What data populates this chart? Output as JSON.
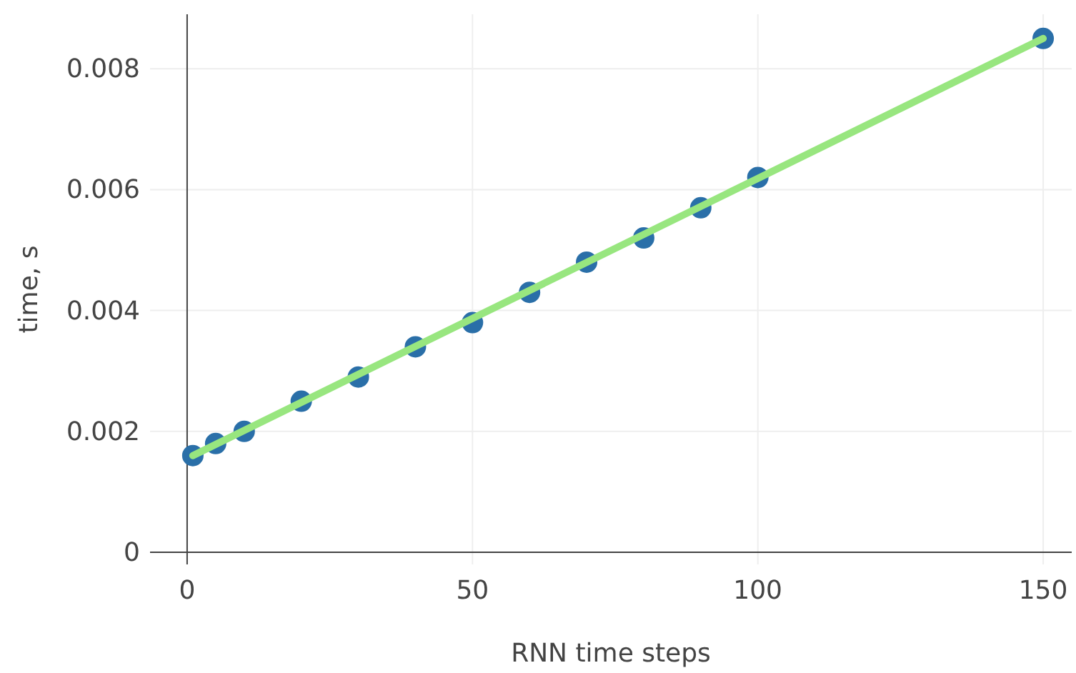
{
  "chart_data": {
    "type": "scatter",
    "xlabel": "RNN time steps",
    "ylabel": "time, s",
    "x": [
      1,
      5,
      10,
      20,
      30,
      40,
      50,
      60,
      70,
      80,
      90,
      100,
      150
    ],
    "series": [
      {
        "color": "#2a6fa8",
        "values": [
          0.0016,
          0.0018,
          0.002,
          0.0025,
          0.0029,
          0.0034,
          0.0038,
          0.0043,
          0.0048,
          0.0052,
          0.0057,
          0.0062,
          0.0085
        ],
        "marker": "circle"
      },
      {
        "type": "line",
        "color": "#98e67f",
        "x": [
          1,
          150
        ],
        "values": [
          0.0016,
          0.0085
        ],
        "marker": "none"
      }
    ],
    "xlim": [
      -6.5,
      155
    ],
    "xticks": [
      0,
      50,
      100,
      150
    ],
    "ylim": [
      -0.0002,
      0.0089
    ],
    "yticks": [
      0,
      0.002,
      0.004,
      0.006,
      0.008
    ],
    "grid": true
  }
}
